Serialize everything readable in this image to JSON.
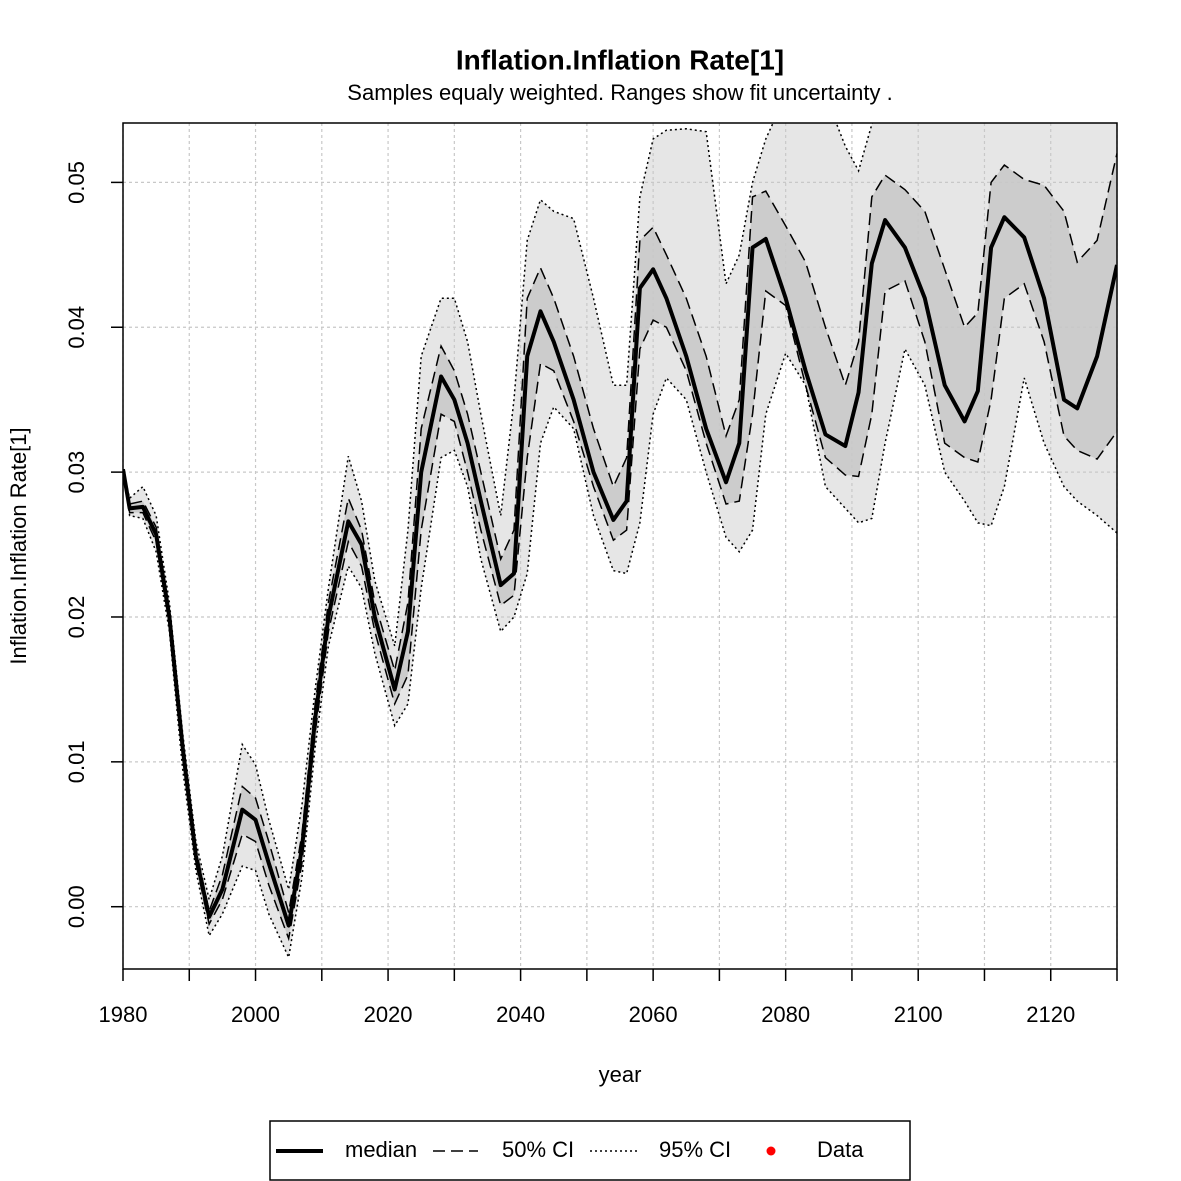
{
  "chart_data": {
    "type": "ribbon",
    "title": "Inflation.Inflation Rate[1]",
    "subtitle": "Samples equaly weighted. Ranges show  fit uncertainty .",
    "x_label": "year",
    "y_label": "Inflation.Inflation Rate[1]",
    "xlim": [
      1980,
      2130
    ],
    "ylim": [
      -0.0043,
      0.0541
    ],
    "xticks": [
      1980,
      2000,
      2020,
      2040,
      2060,
      2080,
      2100,
      2120
    ],
    "xticks_minor": [
      1990,
      2010,
      2030,
      2050,
      2070,
      2090,
      2110,
      2130
    ],
    "yticks": [
      {
        "value": 0,
        "label": "0.00"
      },
      0.01,
      0.02,
      0.03,
      0.04,
      0.05
    ],
    "grid": true,
    "x": [
      1980,
      1981,
      1983,
      1985,
      1987,
      1989,
      1991,
      1993,
      1995,
      1998,
      2000,
      2002,
      2005,
      2007,
      2009,
      2011,
      2014,
      2016,
      2018,
      2021,
      2023,
      2025,
      2028,
      2030,
      2032,
      2034,
      2037,
      2039,
      2041,
      2043,
      2045,
      2048,
      2051,
      2054,
      2056,
      2058,
      2060,
      2062,
      2065,
      2068,
      2071,
      2073,
      2075,
      2077,
      2080,
      2083,
      2086,
      2089,
      2091,
      2093,
      2095,
      2098,
      2101,
      2104,
      2107,
      2109,
      2111,
      2113,
      2116,
      2119,
      2122,
      2124,
      2127,
      2130
    ],
    "series": [
      {
        "name": "median",
        "color": "#000000",
        "values": [
          0.0302,
          0.0275,
          0.0276,
          0.0257,
          0.02,
          0.011,
          0.0035,
          -0.0007,
          0.0012,
          0.0067,
          0.006,
          0.003,
          -0.0013,
          0.004,
          0.013,
          0.02,
          0.0266,
          0.025,
          0.02,
          0.015,
          0.019,
          0.03,
          0.0366,
          0.035,
          0.032,
          0.028,
          0.0222,
          0.023,
          0.038,
          0.0411,
          0.039,
          0.035,
          0.03,
          0.0267,
          0.028,
          0.0427,
          0.044,
          0.042,
          0.038,
          0.033,
          0.0293,
          0.032,
          0.0455,
          0.0461,
          0.042,
          0.037,
          0.0326,
          0.0318,
          0.0355,
          0.0444,
          0.0474,
          0.0455,
          0.042,
          0.036,
          0.0335,
          0.0356,
          0.0455,
          0.0476,
          0.0462,
          0.042,
          0.035,
          0.0344,
          0.038,
          0.0443
        ]
      }
    ],
    "bands": [
      {
        "name": "50% CI",
        "color": "#cccccc",
        "line": "dashed",
        "lower": [
          0.0302,
          0.0272,
          0.0272,
          0.0252,
          0.0195,
          0.0105,
          0.003,
          -0.0012,
          0.0005,
          0.005,
          0.0045,
          0.0015,
          -0.0022,
          0.003,
          0.012,
          0.019,
          0.0252,
          0.0235,
          0.019,
          0.014,
          0.016,
          0.026,
          0.034,
          0.0335,
          0.03,
          0.026,
          0.0208,
          0.0215,
          0.031,
          0.0375,
          0.037,
          0.0335,
          0.029,
          0.0253,
          0.026,
          0.0385,
          0.0405,
          0.04,
          0.037,
          0.032,
          0.0278,
          0.028,
          0.034,
          0.0425,
          0.0415,
          0.036,
          0.031,
          0.0298,
          0.0297,
          0.034,
          0.0425,
          0.0432,
          0.039,
          0.032,
          0.031,
          0.0307,
          0.035,
          0.042,
          0.043,
          0.039,
          0.0325,
          0.0315,
          0.0309,
          0.0328
        ],
        "upper": [
          0.0302,
          0.0278,
          0.028,
          0.0262,
          0.0205,
          0.0115,
          0.004,
          -0.0003,
          0.0022,
          0.0083,
          0.0075,
          0.0045,
          -0.0004,
          0.005,
          0.014,
          0.021,
          0.0282,
          0.026,
          0.021,
          0.0163,
          0.021,
          0.033,
          0.0387,
          0.037,
          0.034,
          0.03,
          0.024,
          0.026,
          0.042,
          0.0441,
          0.042,
          0.038,
          0.033,
          0.029,
          0.031,
          0.046,
          0.0469,
          0.045,
          0.042,
          0.038,
          0.0325,
          0.035,
          0.049,
          0.0494,
          0.047,
          0.0445,
          0.04,
          0.036,
          0.039,
          0.049,
          0.0505,
          0.0495,
          0.048,
          0.044,
          0.04,
          0.041,
          0.05,
          0.0512,
          0.0502,
          0.0498,
          0.048,
          0.0445,
          0.046,
          0.052
        ]
      },
      {
        "name": "95% CI",
        "color": "#e6e6e6",
        "line": "dotted",
        "lower": [
          0.0302,
          0.027,
          0.0268,
          0.0245,
          0.019,
          0.0095,
          0.0025,
          -0.002,
          -0.0005,
          0.0028,
          0.0025,
          -0.0005,
          -0.0035,
          0.002,
          0.011,
          0.018,
          0.0235,
          0.022,
          0.0175,
          0.0125,
          0.014,
          0.022,
          0.031,
          0.0315,
          0.029,
          0.024,
          0.019,
          0.02,
          0.023,
          0.032,
          0.0345,
          0.033,
          0.027,
          0.0232,
          0.023,
          0.0265,
          0.034,
          0.0365,
          0.035,
          0.03,
          0.0255,
          0.0245,
          0.026,
          0.034,
          0.0382,
          0.036,
          0.029,
          0.0275,
          0.0265,
          0.0268,
          0.032,
          0.0385,
          0.036,
          0.03,
          0.028,
          0.0265,
          0.0263,
          0.029,
          0.0365,
          0.032,
          0.029,
          0.028,
          0.027,
          0.0258
        ],
        "upper": [
          0.0302,
          0.0282,
          0.029,
          0.027,
          0.021,
          0.012,
          0.0045,
          0.0005,
          0.0035,
          0.0112,
          0.0098,
          0.006,
          0.0012,
          0.007,
          0.015,
          0.022,
          0.0311,
          0.028,
          0.0225,
          0.018,
          0.026,
          0.038,
          0.042,
          0.042,
          0.039,
          0.034,
          0.027,
          0.035,
          0.046,
          0.0488,
          0.048,
          0.0475,
          0.042,
          0.036,
          0.036,
          0.049,
          0.053,
          0.0536,
          0.0537,
          0.0535,
          0.043,
          0.045,
          0.05,
          0.053,
          0.056,
          0.056,
          0.056,
          0.0525,
          0.0508,
          0.054,
          0.056,
          0.056,
          0.056,
          0.056,
          0.056,
          0.056,
          0.056,
          0.056,
          0.056,
          0.056,
          0.056,
          0.056,
          0.056,
          0.056
        ]
      }
    ],
    "legend_extra": {
      "name": "Data",
      "color": "#ff0000"
    }
  }
}
